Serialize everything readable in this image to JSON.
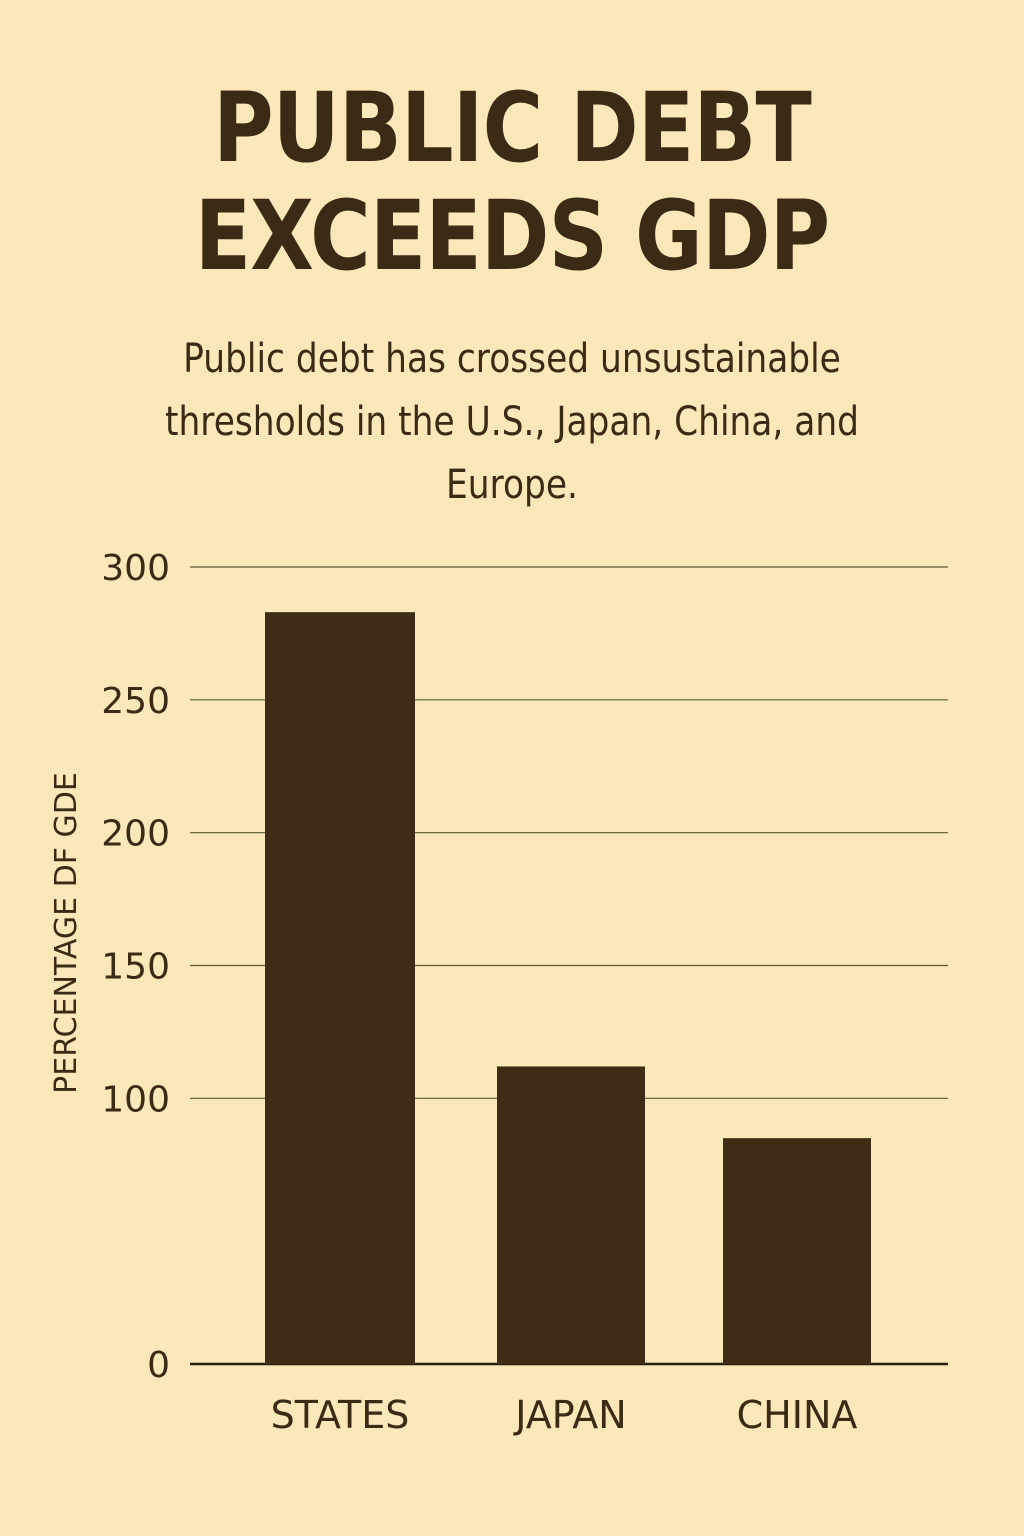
{
  "chart_data": {
    "type": "bar",
    "title_lines": [
      "PUBLIC DEBT",
      "EXCEEDS GDP"
    ],
    "subtitle": "Public debt has crossed unsustainable thresholds in the U.S., Japan, China, and Europe.",
    "ylabel": "PERCENTAGE DF GDE",
    "xlabel": "",
    "categories": [
      "STATES",
      "JAPAN",
      "CHINA"
    ],
    "values": [
      283,
      112,
      85
    ],
    "ylim": [
      0,
      300
    ],
    "yticks": [
      0,
      100,
      150,
      200,
      250,
      300
    ],
    "grid": true,
    "colors": {
      "background": "#fbe7b9",
      "bar": "#3e2d14",
      "text": "#3b2a14",
      "grid": "#5c5a36"
    }
  }
}
